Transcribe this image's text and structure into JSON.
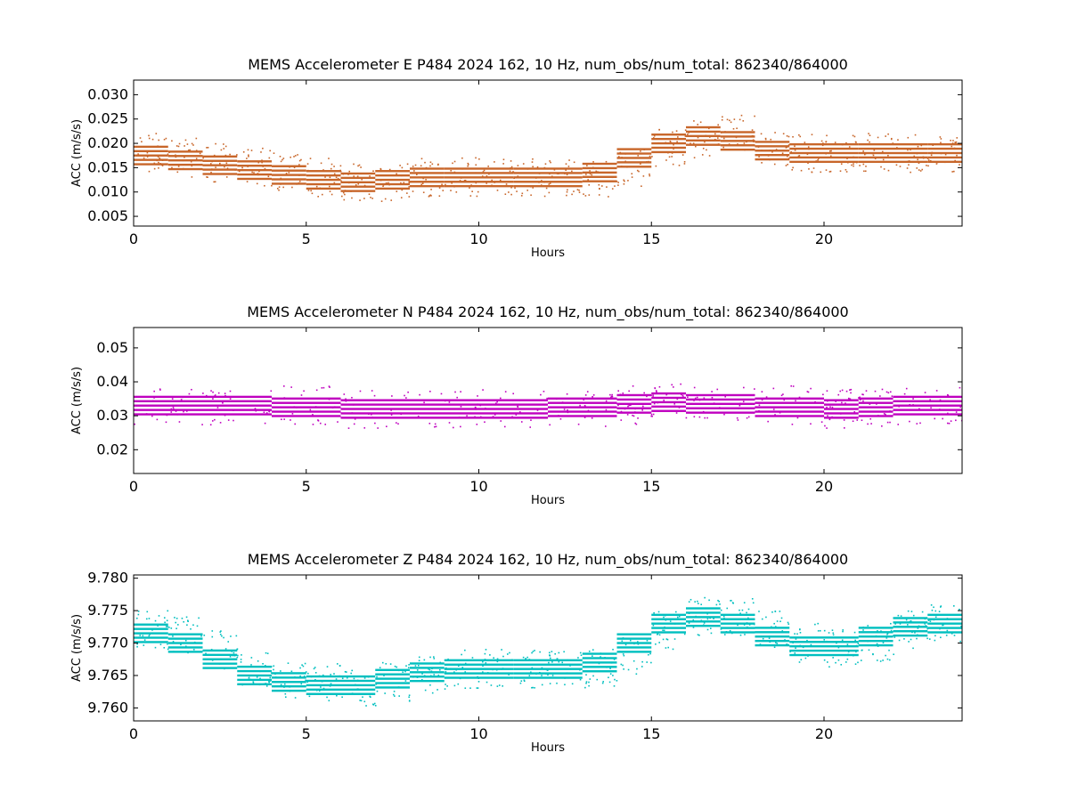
{
  "chart_data": [
    {
      "type": "scatter",
      "title": "MEMS Accelerometer E P484 2024 162, 10 Hz, num_obs/num_total: 862340/864000",
      "xlabel": "Hours",
      "ylabel": "ACC (m/s/s)",
      "xlim": [
        0,
        24
      ],
      "ylim": [
        0.003,
        0.033
      ],
      "xticks": [
        0,
        5,
        10,
        15,
        20
      ],
      "xtick_labels": [
        "0",
        "5",
        "10",
        "15",
        "20"
      ],
      "yticks": [
        0.005,
        0.01,
        0.015,
        0.02,
        0.025,
        0.03
      ],
      "ytick_labels": [
        "0.005",
        "0.010",
        "0.015",
        "0.020",
        "0.025",
        "0.030"
      ],
      "grid": false,
      "color": "#c8662a",
      "series": [
        {
          "values": [
            [
              0,
              0.018
            ],
            [
              1,
              0.017
            ],
            [
              2,
              0.016
            ],
            [
              3,
              0.015
            ],
            [
              4,
              0.014
            ],
            [
              5,
              0.013
            ],
            [
              6,
              0.012
            ],
            [
              7,
              0.012
            ],
            [
              8,
              0.013
            ],
            [
              9,
              0.013
            ],
            [
              10,
              0.013
            ],
            [
              11,
              0.013
            ],
            [
              12,
              0.013
            ],
            [
              13,
              0.013
            ],
            [
              14,
              0.015
            ],
            [
              15,
              0.019
            ],
            [
              16,
              0.021
            ],
            [
              17,
              0.022
            ],
            [
              18,
              0.019
            ],
            [
              19,
              0.018
            ],
            [
              20,
              0.018
            ],
            [
              21,
              0.018
            ],
            [
              22,
              0.018
            ],
            [
              23,
              0.018
            ],
            [
              24,
              0.018
            ]
          ]
        }
      ]
    },
    {
      "type": "scatter",
      "title": "MEMS Accelerometer N P484 2024 162, 10 Hz, num_obs/num_total: 862340/864000",
      "xlabel": "Hours",
      "ylabel": "ACC (m/s/s)",
      "xlim": [
        0,
        24
      ],
      "ylim": [
        0.013,
        0.056
      ],
      "xticks": [
        0,
        5,
        10,
        15,
        20
      ],
      "xtick_labels": [
        "0",
        "5",
        "10",
        "15",
        "20"
      ],
      "yticks": [
        0.02,
        0.03,
        0.04,
        0.05
      ],
      "ytick_labels": [
        "0.02",
        "0.03",
        "0.04",
        "0.05"
      ],
      "grid": false,
      "color": "#bf00bf",
      "series": [
        {
          "values": [
            [
              0,
              0.033
            ],
            [
              2,
              0.033
            ],
            [
              4,
              0.033
            ],
            [
              6,
              0.032
            ],
            [
              8,
              0.032
            ],
            [
              10,
              0.032
            ],
            [
              12,
              0.032
            ],
            [
              14,
              0.033
            ],
            [
              15,
              0.034
            ],
            [
              16,
              0.034
            ],
            [
              18,
              0.033
            ],
            [
              20,
              0.032
            ],
            [
              21,
              0.032
            ],
            [
              22,
              0.033
            ],
            [
              24,
              0.033
            ]
          ]
        }
      ]
    },
    {
      "type": "scatter",
      "title": "MEMS Accelerometer Z P484 2024 162, 10 Hz, num_obs/num_total: 862340/864000",
      "xlabel": "Hours",
      "ylabel": "ACC (m/s/s)",
      "xlim": [
        0,
        24
      ],
      "ylim": [
        9.758,
        9.7805
      ],
      "xticks": [
        0,
        5,
        10,
        15,
        20
      ],
      "xtick_labels": [
        "0",
        "5",
        "10",
        "15",
        "20"
      ],
      "yticks": [
        9.76,
        9.765,
        9.77,
        9.775,
        9.78
      ],
      "ytick_labels": [
        "9.760",
        "9.765",
        "9.770",
        "9.775",
        "9.780"
      ],
      "grid": false,
      "color": "#00bfbf",
      "series": [
        {
          "values": [
            [
              0,
              9.772
            ],
            [
              1,
              9.771
            ],
            [
              2,
              9.769
            ],
            [
              3,
              9.766
            ],
            [
              4,
              9.764
            ],
            [
              5,
              9.764
            ],
            [
              6,
              9.763
            ],
            [
              7,
              9.764
            ],
            [
              8,
              9.765
            ],
            [
              9,
              9.766
            ],
            [
              10,
              9.766
            ],
            [
              11,
              9.766
            ],
            [
              12,
              9.766
            ],
            [
              13,
              9.766
            ],
            [
              14,
              9.768
            ],
            [
              15,
              9.772
            ],
            [
              16,
              9.774
            ],
            [
              17,
              9.774
            ],
            [
              18,
              9.772
            ],
            [
              19,
              9.77
            ],
            [
              20,
              9.769
            ],
            [
              21,
              9.77
            ],
            [
              22,
              9.772
            ],
            [
              23,
              9.773
            ],
            [
              24,
              9.773
            ]
          ]
        }
      ]
    }
  ]
}
